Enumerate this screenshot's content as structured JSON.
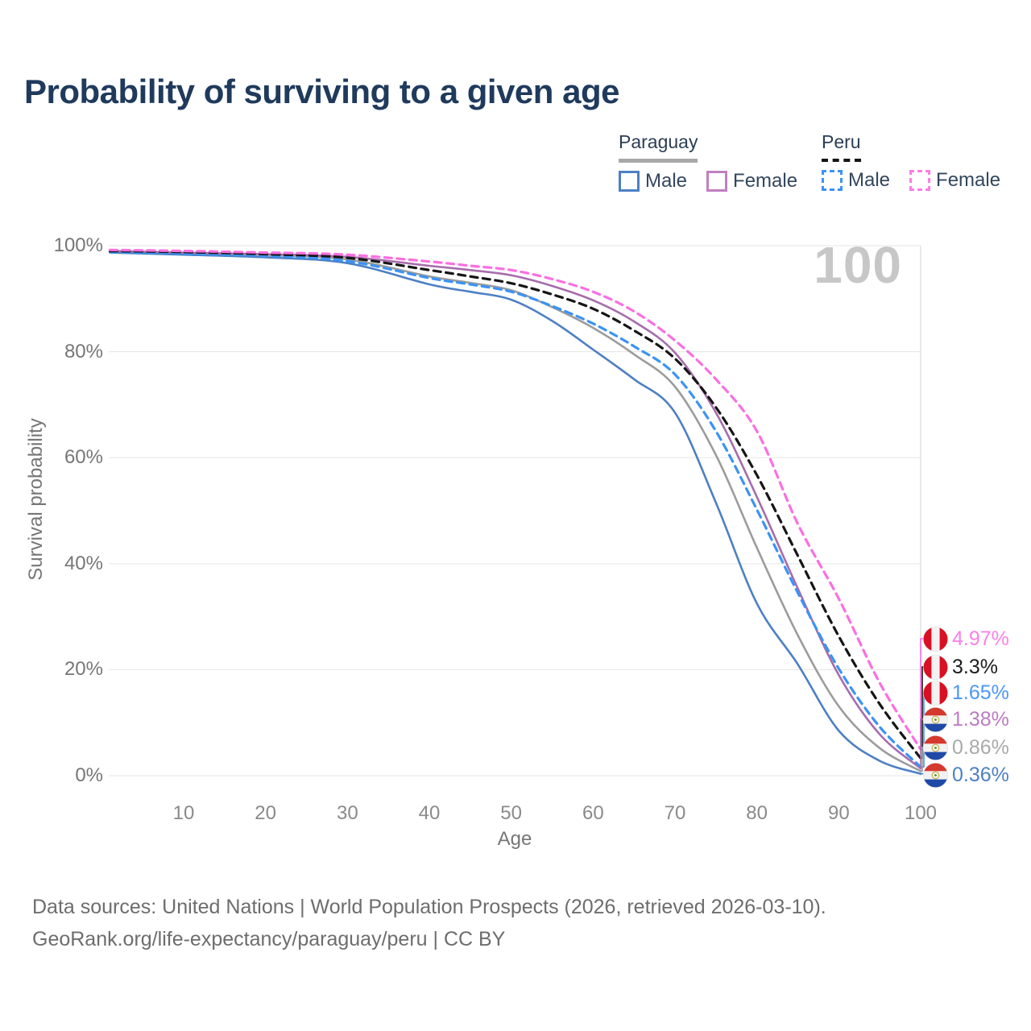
{
  "title": "Probability of surviving to a given age",
  "watermark_age": "100",
  "legend": {
    "groups": [
      {
        "label": "Paraguay",
        "line_style": "solid",
        "underline_color": "#a8a8a8",
        "items": [
          {
            "label": "Male",
            "color": "#4c80c4"
          },
          {
            "label": "Female",
            "color": "#c17fc1"
          }
        ]
      },
      {
        "label": "Peru",
        "line_style": "dashed",
        "underline_color": "#151515",
        "items": [
          {
            "label": "Male",
            "color": "#3b93f5"
          },
          {
            "label": "Female",
            "color": "#fb7de4"
          }
        ]
      }
    ]
  },
  "chart_data": {
    "type": "line",
    "title": "Probability of surviving to a given age",
    "xlabel": "Age",
    "ylabel": "Survival probability",
    "xlim": [
      0,
      100
    ],
    "ylim": [
      0,
      100
    ],
    "units": "percent",
    "grid": "horizontal-only",
    "grid_color": "#e9e9e9",
    "crosshair_color": "#e2e2e2",
    "hovered_age": 100,
    "x_ticks": [
      {
        "value": 10,
        "label": "10"
      },
      {
        "value": 20,
        "label": "20"
      },
      {
        "value": 30,
        "label": "30"
      },
      {
        "value": 40,
        "label": "40"
      },
      {
        "value": 50,
        "label": "50"
      },
      {
        "value": 60,
        "label": "60"
      },
      {
        "value": 70,
        "label": "70"
      },
      {
        "value": 80,
        "label": "80"
      },
      {
        "value": 90,
        "label": "90"
      },
      {
        "value": 100,
        "label": "100"
      }
    ],
    "y_ticks": [
      {
        "value": 0,
        "label": "0%"
      },
      {
        "value": 20,
        "label": "20%"
      },
      {
        "value": 40,
        "label": "40%"
      },
      {
        "value": 60,
        "label": "60%"
      },
      {
        "value": 80,
        "label": "80%"
      },
      {
        "value": 100,
        "label": "100%"
      }
    ],
    "ages": [
      1,
      10,
      20,
      30,
      40,
      45,
      50,
      55,
      60,
      65,
      70,
      75,
      80,
      85,
      90,
      95,
      100
    ],
    "series": [
      {
        "name": "Paraguay Both sexes",
        "country": "Paraguay",
        "sex": "Both",
        "color": "#9c9c9c",
        "dash": false,
        "values": [
          98.9,
          98.6,
          98.2,
          97.4,
          94.2,
          93.0,
          91.6,
          88.4,
          84.5,
          79.5,
          73.4,
          60.5,
          43.0,
          26.5,
          13.1,
          5.2,
          0.86
        ]
      },
      {
        "name": "Paraguay Male",
        "country": "Paraguay",
        "sex": "Male",
        "color": "#4c80c4",
        "dash": false,
        "values": [
          98.7,
          98.3,
          97.8,
          96.7,
          92.7,
          91.3,
          89.8,
          85.8,
          80.4,
          74.8,
          68.5,
          51.5,
          32.5,
          21.0,
          8.5,
          2.8,
          0.36
        ]
      },
      {
        "name": "Paraguay Female",
        "country": "Paraguay",
        "sex": "Female",
        "color": "#a76cac",
        "dash": false,
        "values": [
          99.0,
          98.7,
          98.4,
          97.9,
          96.2,
          95.4,
          94.4,
          92.4,
          89.7,
          85.7,
          79.8,
          68.5,
          52.6,
          35.3,
          19.0,
          7.8,
          1.38
        ]
      },
      {
        "name": "Peru Male",
        "country": "Peru",
        "sex": "Male",
        "color": "#3b93f5",
        "dash": true,
        "values": [
          98.8,
          98.5,
          98.1,
          97.1,
          93.9,
          92.7,
          91.3,
          88.6,
          85.3,
          81.0,
          75.7,
          65.0,
          50.2,
          34.5,
          20.2,
          9.2,
          1.65
        ]
      },
      {
        "name": "Peru Both sexes",
        "country": "Peru",
        "sex": "Both",
        "color": "#161616",
        "dash": true,
        "values": [
          99.0,
          98.8,
          98.4,
          97.7,
          95.4,
          94.2,
          92.9,
          90.8,
          88.1,
          84.0,
          78.7,
          69.5,
          56.7,
          41.5,
          26.3,
          13.5,
          3.3
        ]
      },
      {
        "name": "Peru Female",
        "country": "Peru",
        "sex": "Female",
        "color": "#fb6fe1",
        "dash": true,
        "values": [
          99.2,
          99.0,
          98.7,
          98.3,
          97.0,
          96.2,
          95.4,
          93.7,
          91.3,
          87.6,
          82.1,
          74.8,
          65.0,
          47.5,
          33.4,
          17.5,
          4.97
        ]
      }
    ],
    "end_labels": [
      {
        "flag": "peru",
        "series": "Peru Female",
        "label": "4.97%",
        "value": 4.97,
        "color": "#fc80e6",
        "line_color": "#fb6fe1"
      },
      {
        "flag": "peru",
        "series": "Peru Both sexes",
        "label": "3.3%",
        "value": 3.3,
        "color": "#1c1c1c",
        "line_color": "#161616"
      },
      {
        "flag": "peru",
        "series": "Peru Male",
        "label": "1.65%",
        "value": 1.65,
        "color": "#4a97fa",
        "line_color": "#3b93f5"
      },
      {
        "flag": "paraguay",
        "series": "Paraguay Female",
        "label": "1.38%",
        "value": 1.38,
        "color": "#bc7bc4",
        "line_color": "#a76cac"
      },
      {
        "flag": "paraguay",
        "series": "Paraguay Both sexes",
        "label": "0.86%",
        "value": 0.86,
        "color": "#a9a9a9",
        "line_color": "#9c9c9c"
      },
      {
        "flag": "paraguay",
        "series": "Paraguay Male",
        "label": "0.36%",
        "value": 0.36,
        "color": "#4c80c4",
        "line_color": "#4c80c4"
      }
    ]
  },
  "footer": {
    "line1": "Data sources: United Nations | World Population Prospects (2026, retrieved 2026-03-10).",
    "line2": "GeoRank.org/life-expectancy/paraguay/peru | CC BY"
  },
  "colors": {
    "title": "#1f3a5c",
    "watermark": "#c7c7c7",
    "tick_label": "#767676",
    "footer_text": "#6d6d6d",
    "peru_flag_red": "#d91023",
    "paraguay_flag_red": "#d5382d",
    "paraguay_flag_blue": "#1f49a6"
  }
}
